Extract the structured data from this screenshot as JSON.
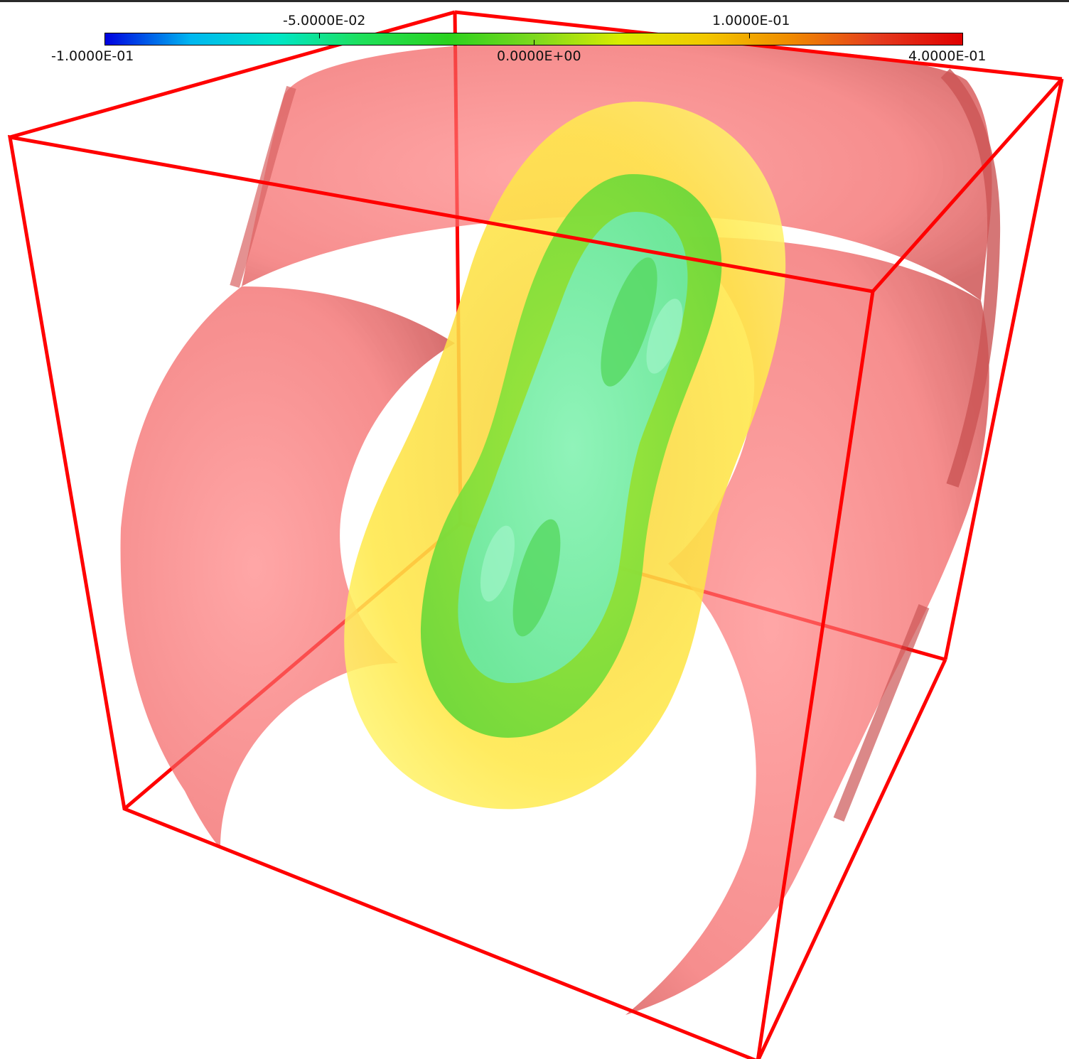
{
  "colorbar": {
    "min_label": "-1.0000E-01",
    "max_label": "4.0000E-01",
    "tick_labels_top": [
      "-5.0000E-02",
      "1.0000E-01"
    ],
    "tick_labels_bottom": [
      "0.0000E+00"
    ],
    "gradient": [
      "#0000e0",
      "#00b7f0",
      "#00e6c8",
      "#1ee05a",
      "#2ad21e",
      "#7cd81e",
      "#d8ec00",
      "#f2c800",
      "#f08a00",
      "#e43c1e",
      "#e00000"
    ]
  },
  "isosurfaces": {
    "outer_color": "#ff4c4c",
    "middle_color": "#ffe23c",
    "inner_color": "#6bdf3c",
    "core_color": "#7ff3a8"
  },
  "bounding_box": {
    "color": "#ff0000"
  }
}
